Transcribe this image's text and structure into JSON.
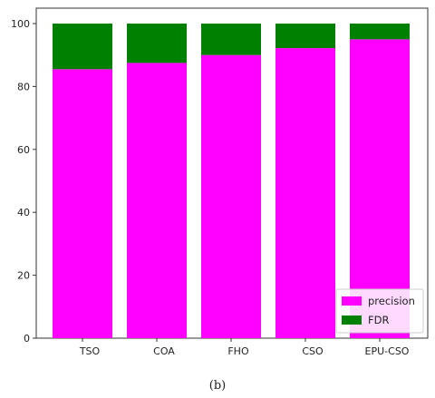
{
  "chart_data": {
    "type": "bar",
    "stacked": true,
    "categories": [
      "TSO",
      "COA",
      "FHO",
      "CSO",
      "EPU-CSO"
    ],
    "series": [
      {
        "name": "precision",
        "color": "#ff00ff",
        "values": [
          85.5,
          87.5,
          90,
          92.2,
          95
        ]
      },
      {
        "name": "FDR",
        "color": "#008000",
        "values": [
          14.5,
          12.5,
          10,
          7.8,
          5
        ]
      }
    ],
    "ylim": [
      0,
      100
    ],
    "yticks": [
      0,
      20,
      40,
      60,
      80,
      100
    ],
    "legend": "lower-right",
    "grid": false
  },
  "caption": "(b)"
}
